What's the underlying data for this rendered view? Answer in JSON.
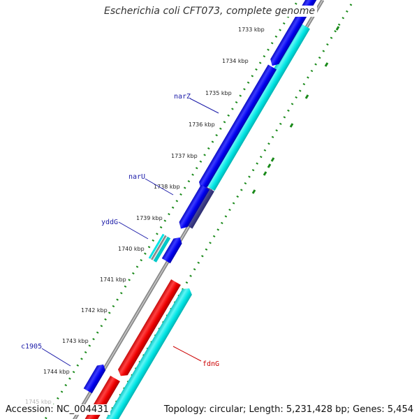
{
  "title": "Escherichia coli CFT073, complete genome",
  "footer": {
    "accession": "Accession: NC_004431",
    "topology": "Topology: circular; Length: 5,231,428 bp; Genes: 5,454"
  },
  "ticks": [
    "1733 kbp",
    "1734 kbp",
    "1735 kbp",
    "1736 kbp",
    "1737 kbp",
    "1738 kbp",
    "1739 kbp",
    "1740 kbp",
    "1741 kbp",
    "1742 kbp",
    "1743 kbp",
    "1744 kbp",
    "1745 kbp"
  ],
  "genes": [
    {
      "name": "narZ",
      "color": "#1a1aa8"
    },
    {
      "name": "narU",
      "color": "#1a1aa8"
    },
    {
      "name": "yddG",
      "color": "#1a1aa8"
    },
    {
      "name": "c1905",
      "color": "#1a1aa8"
    },
    {
      "name": "fdnG",
      "color": "#cc0000"
    }
  ],
  "colors": {
    "cds_forward": "#00e5e5",
    "cds_reverse": "#0000ee",
    "rna": "#ee0000",
    "backbone": "#888888",
    "gc_skew": "#1a8a1a"
  }
}
